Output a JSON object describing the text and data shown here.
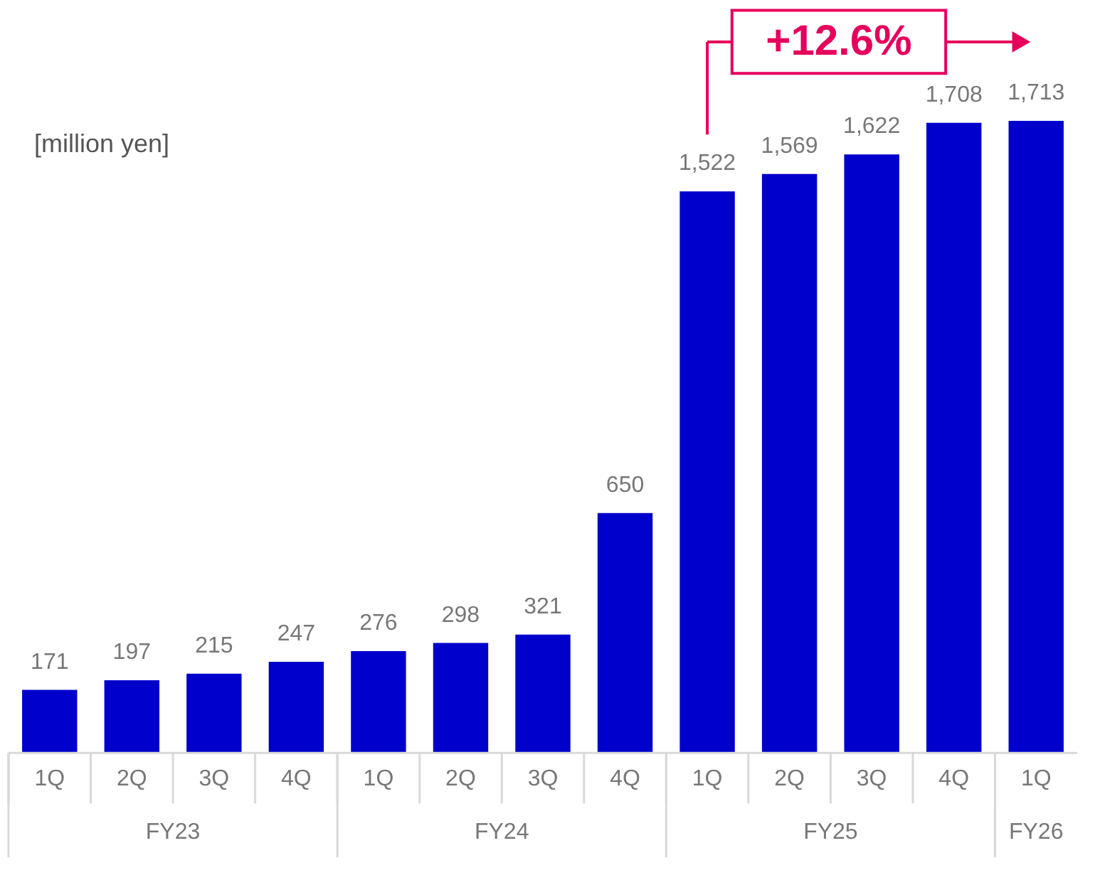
{
  "chart_data": {
    "type": "bar",
    "ylabel": "[million yen]",
    "categories": [
      "1Q",
      "2Q",
      "3Q",
      "4Q",
      "1Q",
      "2Q",
      "3Q",
      "4Q",
      "1Q",
      "2Q",
      "3Q",
      "4Q",
      "1Q"
    ],
    "values": [
      171,
      197,
      215,
      247,
      276,
      298,
      321,
      650,
      1522,
      1569,
      1622,
      1708,
      1713
    ],
    "color": "#0000cc",
    "value_labels": [
      "171",
      "197",
      "215",
      "247",
      "276",
      "298",
      "321",
      "650",
      "1,522",
      "1,569",
      "1,622",
      "1,708",
      "1,713"
    ],
    "annotations": [
      "FY23",
      "FY24",
      "FY25",
      "FY26",
      "+12.6%"
    ]
  }
}
